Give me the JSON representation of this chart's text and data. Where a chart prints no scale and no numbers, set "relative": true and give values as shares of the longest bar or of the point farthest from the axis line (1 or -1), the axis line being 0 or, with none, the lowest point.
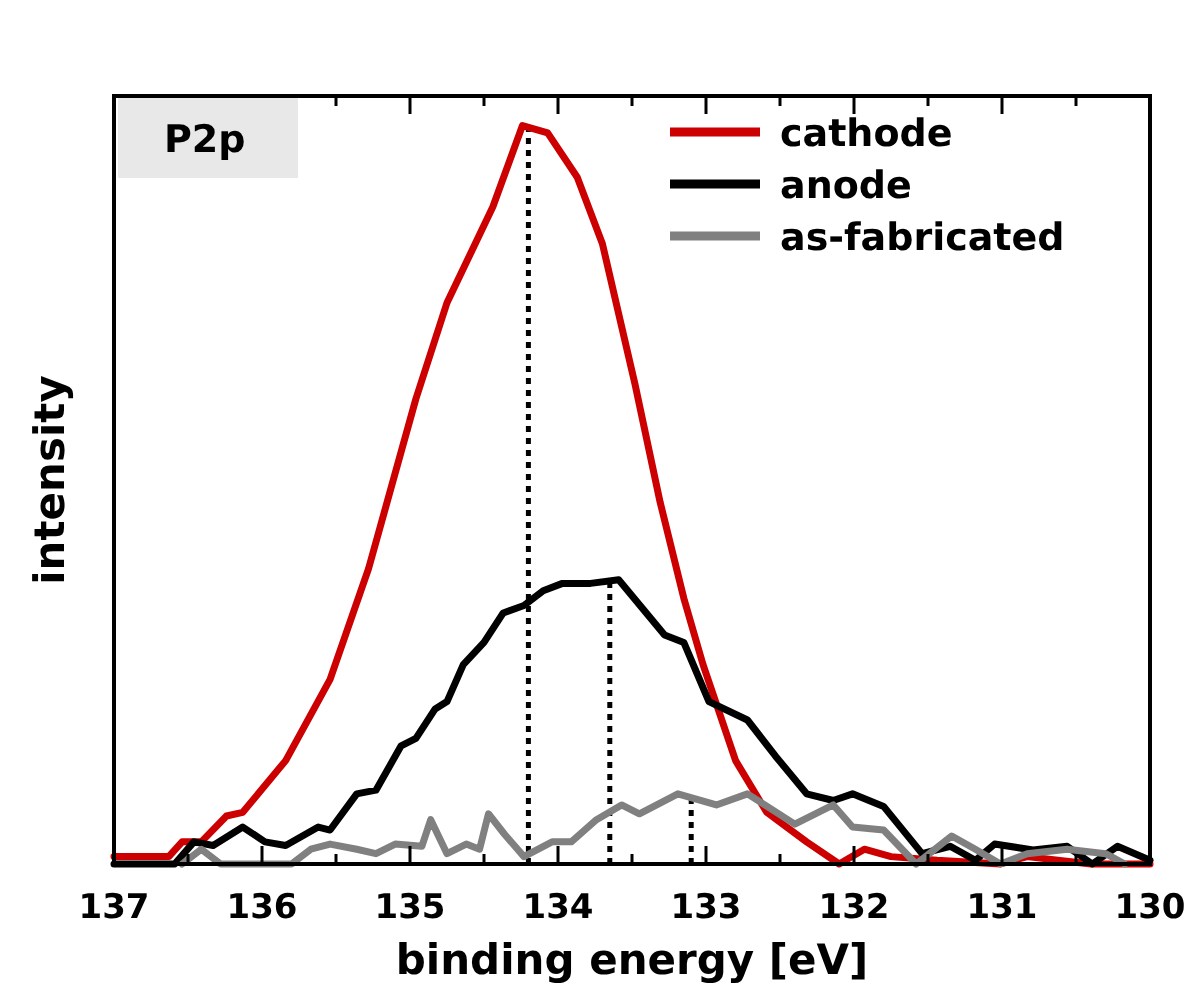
{
  "chart_data": {
    "type": "line",
    "title": "P2p",
    "xlabel": "binding energy [eV]",
    "ylabel": "intensity",
    "relative": true,
    "xlim": [
      137,
      130
    ],
    "xticks": [
      137,
      {
        "value": 136.5,
        "label": null
      },
      136,
      {
        "value": 135.5,
        "label": null
      },
      135,
      {
        "value": 134.5,
        "label": null
      },
      134,
      {
        "value": 133.5,
        "label": null
      },
      133,
      {
        "value": 132.5,
        "label": null
      },
      132,
      {
        "value": 131.5,
        "label": null
      },
      131,
      {
        "value": 130.5,
        "label": null
      },
      130
    ],
    "legend": "top right",
    "grid": false,
    "line_style": "solid",
    "series": [
      {
        "name": "cathode",
        "color": "#cc0000",
        "x": [
          137.0,
          136.63,
          136.54,
          136.41,
          136.24,
          136.13,
          135.84,
          135.54,
          135.28,
          134.96,
          134.75,
          134.44,
          134.24,
          134.07,
          133.87,
          133.7,
          133.48,
          133.31,
          133.15,
          133.02,
          132.8,
          132.59,
          132.32,
          132.1,
          131.93,
          131.75,
          131.44,
          131.01,
          130.83,
          130.4,
          130.0
        ],
        "values": [
          0.01,
          0.01,
          0.03,
          0.03,
          0.065,
          0.07,
          0.14,
          0.25,
          0.4,
          0.63,
          0.76,
          0.89,
          1.0,
          0.99,
          0.93,
          0.84,
          0.65,
          0.49,
          0.36,
          0.27,
          0.14,
          0.07,
          0.03,
          0.0,
          0.02,
          0.01,
          0.005,
          0.0,
          0.01,
          0.0,
          0.0
        ]
      },
      {
        "name": "anode",
        "color": "#000000",
        "x": [
          137.0,
          136.59,
          136.46,
          136.33,
          136.13,
          135.98,
          135.84,
          135.62,
          135.54,
          135.36,
          135.23,
          135.06,
          134.96,
          134.83,
          134.75,
          134.64,
          134.5,
          134.37,
          134.23,
          134.1,
          133.97,
          133.78,
          133.59,
          133.28,
          133.15,
          132.98,
          132.72,
          132.53,
          132.32,
          132.14,
          132.01,
          131.8,
          131.54,
          131.35,
          131.18,
          131.05,
          130.79,
          130.56,
          130.39,
          130.22,
          130.0
        ],
        "values": [
          0.0,
          0.0,
          0.03,
          0.025,
          0.05,
          0.03,
          0.025,
          0.05,
          0.046,
          0.095,
          0.1,
          0.16,
          0.17,
          0.21,
          0.22,
          0.27,
          0.3,
          0.34,
          0.35,
          0.37,
          0.38,
          0.38,
          0.385,
          0.31,
          0.3,
          0.22,
          0.195,
          0.146,
          0.095,
          0.086,
          0.095,
          0.078,
          0.014,
          0.024,
          0.005,
          0.027,
          0.019,
          0.024,
          0.0,
          0.024,
          0.005
        ]
      },
      {
        "name": "as-fabricated",
        "color": "#808080",
        "x": [
          136.54,
          136.41,
          136.28,
          135.98,
          135.8,
          135.67,
          135.54,
          135.36,
          135.23,
          135.1,
          134.92,
          134.86,
          134.75,
          134.62,
          134.53,
          134.47,
          134.36,
          134.23,
          134.04,
          133.91,
          133.74,
          133.57,
          133.45,
          133.19,
          132.93,
          132.72,
          132.4,
          132.14,
          132.01,
          131.8,
          131.58,
          131.34,
          131.18,
          131.01,
          130.83,
          130.56,
          130.3,
          130.17
        ],
        "values": [
          0,
          0.02,
          0,
          0.0,
          0.0,
          0.02,
          0.027,
          0.02,
          0.014,
          0.027,
          0.024,
          0.06,
          0.014,
          0.027,
          0.02,
          0.068,
          0.04,
          0.01,
          0.03,
          0.03,
          0.06,
          0.08,
          0.068,
          0.095,
          0.08,
          0.095,
          0.054,
          0.08,
          0.05,
          0.046,
          0.0,
          0.038,
          0.02,
          0.0,
          0.014,
          0.02,
          0.014,
          0.0
        ]
      }
    ],
    "ref_lines": [
      {
        "axis": "x",
        "value": 134.2,
        "color": "#000000",
        "line_style": "dotted"
      },
      {
        "axis": "x",
        "value": 133.65,
        "color": "#000000",
        "line_style": "dotted"
      },
      {
        "axis": "x",
        "value": 133.1,
        "color": "#000000",
        "line_style": "dotted"
      }
    ]
  }
}
